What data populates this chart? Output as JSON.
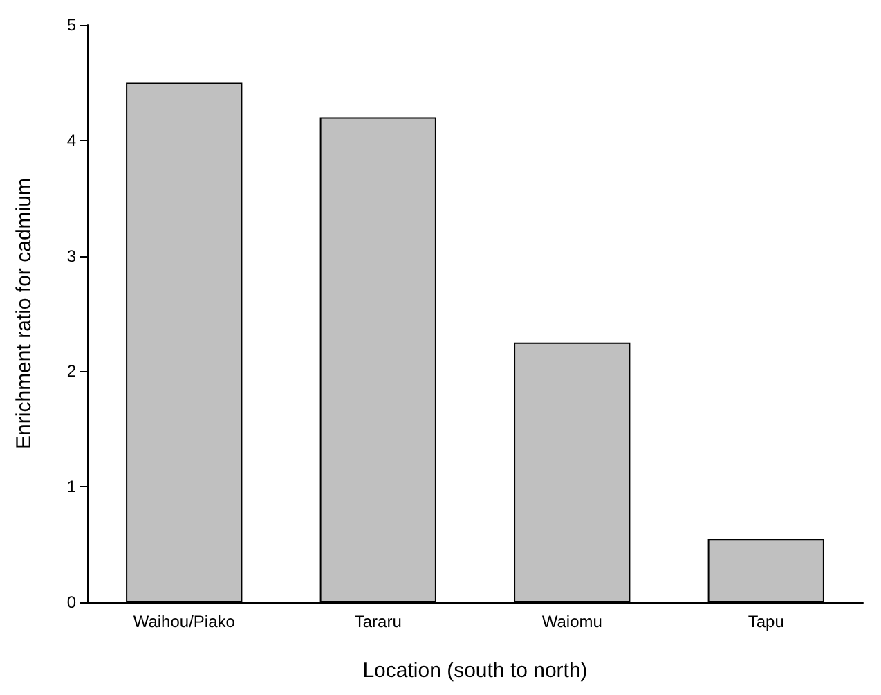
{
  "chart_data": {
    "type": "bar",
    "xlabel": "Location (south to north)",
    "ylabel": "Enrichment ratio for cadmium",
    "categories": [
      "Waihou/Piako",
      "Tararu",
      "Waiomu",
      "Tapu"
    ],
    "values": [
      4.5,
      4.2,
      2.25,
      0.55
    ],
    "color": "#c0c0c0",
    "ylim": [
      0,
      5
    ],
    "yticks": [
      0,
      1,
      2,
      3,
      4,
      5
    ]
  }
}
